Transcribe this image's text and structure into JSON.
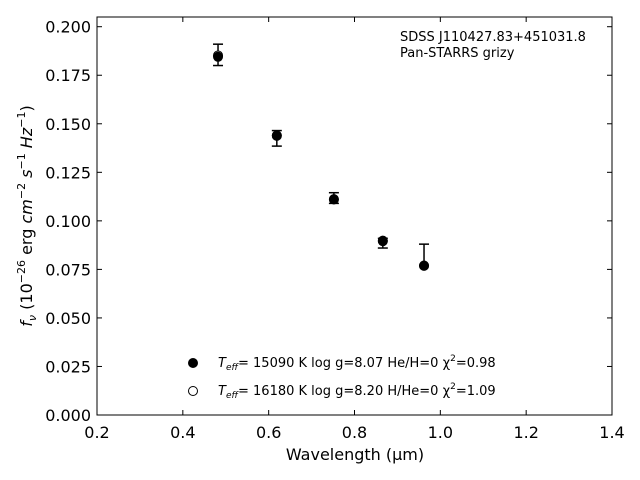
{
  "chart_data": {
    "type": "scatter",
    "xlabel": "Wavelength (μm)",
    "ylabel_parts": {
      "f": "f",
      "nu": "ν",
      "open": " (10",
      "exp26": "−26",
      "erg": " erg ",
      "cm": "cm",
      "expm2": "−2",
      "s": " s",
      "expm1a": "−1",
      "hz": " Hz",
      "expm1b": "−1",
      "close": ")"
    },
    "xlim": [
      0.2,
      1.4
    ],
    "ylim": [
      0.0,
      0.205
    ],
    "xticks": [
      0.2,
      0.4,
      0.6,
      0.8,
      1.0,
      1.2,
      1.4
    ],
    "xtick_labels": [
      "0.2",
      "0.4",
      "0.6",
      "0.8",
      "1.0",
      "1.2",
      "1.4"
    ],
    "yticks": [
      0.0,
      0.025,
      0.05,
      0.075,
      0.1,
      0.125,
      0.15,
      0.175,
      0.2
    ],
    "ytick_labels": [
      "0.000",
      "0.025",
      "0.050",
      "0.075",
      "0.100",
      "0.125",
      "0.150",
      "0.175",
      "0.200"
    ],
    "annotation": [
      "SDSS J110427.83+451031.8",
      "Pan-STARRS grizy"
    ],
    "observed": {
      "x": [
        0.482,
        0.619,
        0.752,
        0.866,
        0.962
      ],
      "y": [
        0.1855,
        0.143,
        0.111,
        0.0895,
        0.0825
      ],
      "yerr_low": [
        0.0055,
        0.0045,
        0.002,
        0.0035,
        0.0055
      ],
      "yerr_high": [
        0.0055,
        0.0035,
        0.0035,
        0.0015,
        0.0055
      ]
    },
    "series": [
      {
        "marker": "filled",
        "x": [
          0.482,
          0.619,
          0.752,
          0.866,
          0.962
        ],
        "y": [
          0.1845,
          0.144,
          0.111,
          0.0895,
          0.077
        ],
        "legend": {
          "T": "T",
          "eff": "eff",
          "rest": "= 15090 K  log g=8.07  He/H=0  χ",
          "sq": "2",
          "tail": "=0.98"
        }
      },
      {
        "marker": "open",
        "x": [
          0.482,
          0.619,
          0.752,
          0.866,
          0.962
        ],
        "y": [
          0.1852,
          0.1438,
          0.1112,
          0.0898,
          0.0768
        ],
        "legend": {
          "T": "T",
          "eff": "eff",
          "rest": "= 16180 K  log g=8.20  H/He=0  χ",
          "sq": "2",
          "tail": "=1.09"
        }
      }
    ]
  }
}
